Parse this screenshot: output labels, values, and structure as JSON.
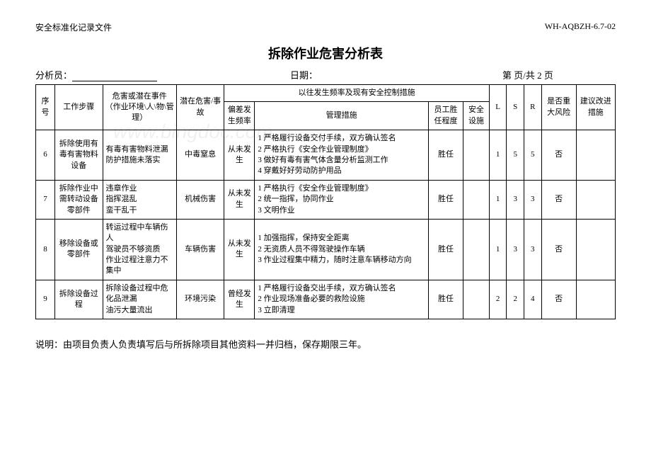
{
  "header": {
    "left": "安全标准化记录文件",
    "right": "WH-AQBZH-6.7-02"
  },
  "title": "拆除作业危害分析表",
  "meta": {
    "analyst_label": "分析员：",
    "date_label": "日期：",
    "page_label": "第  页/共 2 页"
  },
  "watermark": "www.bingdoc.com",
  "columns": {
    "seq": "序号",
    "step": "工作步骤",
    "hazard": "危害或潜在事件（作业环境\\人\\物\\管理）",
    "danger": "潜在危害/事故",
    "measures_group": "以往发生频率及现有安全控制措施",
    "dev_freq": "偏差发生频率",
    "mgmt": "管理措施",
    "competence": "员工胜任程度",
    "facility": "安全设施",
    "L": "L",
    "S": "S",
    "R": "R",
    "major": "是否重大风险",
    "reco": "建议改进措施"
  },
  "rows": [
    {
      "seq": "6",
      "step": "拆除使用有毒有害物料设备",
      "hazard": "有毒有害物料泄漏\n防护措施未落实",
      "danger": "中毒窒息",
      "dev_freq": "从未发生",
      "mgmt": "1 严格履行设备交付手续，双方确认签名\n2 严格执行《安全作业管理制度》\n3 做好有毒有害气体含量分析监测工作\n4 穿戴好好劳动防护用品",
      "competence": "胜任",
      "facility": "",
      "L": "1",
      "S": "5",
      "R": "5",
      "major": "否",
      "reco": ""
    },
    {
      "seq": "7",
      "step": "拆除作业中需转动设备零部件",
      "hazard": "违章作业\n指挥混乱\n蛮干乱干",
      "danger": "机械伤害",
      "dev_freq": "从未发生",
      "mgmt": "1 严格执行《安全作业管理制度》\n2 统一指挥，协同作业\n3 文明作业",
      "competence": "胜任",
      "facility": "",
      "L": "1",
      "S": "3",
      "R": "3",
      "major": "否",
      "reco": ""
    },
    {
      "seq": "8",
      "step": "移除设备或零部件",
      "hazard": "转运过程中车辆伤人\n驾驶员不够资质\n作业过程注意力不集中",
      "danger": "车辆伤害",
      "dev_freq": "从未发生",
      "mgmt": "1 加强指挥，保持安全距离\n2 无资质人员不得驾驶操作车辆\n3 作业过程集中精力，随时注意车辆移动方向",
      "competence": "胜任",
      "facility": "",
      "L": "1",
      "S": "3",
      "R": "3",
      "major": "否",
      "reco": ""
    },
    {
      "seq": "9",
      "step": "拆除设备过程",
      "hazard": "拆除设备过程中危化品泄漏\n油污大量流出",
      "danger": "环境污染",
      "dev_freq": "曾经发生",
      "mgmt": "1 严格履行设备交出手续，双方确认签名\n2 作业现场准备必要的救险设施\n3 立即清理",
      "competence": "胜任",
      "facility": "",
      "L": "2",
      "S": "2",
      "R": "4",
      "major": "否",
      "reco": ""
    }
  ],
  "footer": "说明：由项目负责人负责填写后与所拆除项目其他资料一并归档，保存期限三年。"
}
